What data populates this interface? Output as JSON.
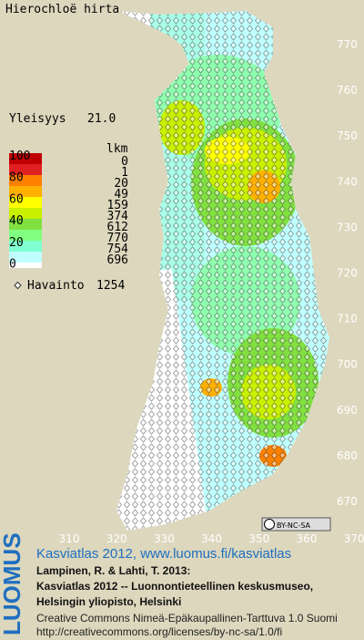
{
  "header": {
    "title": "Hierochloë hirta",
    "frequency_label": "Yleisyys",
    "frequency_value": "21.0"
  },
  "legend": {
    "scale_labels": [
      100,
      80,
      60,
      40,
      20,
      0
    ],
    "count_title": "lkm",
    "counts": [
      0,
      1,
      20,
      49,
      159,
      374,
      612,
      770,
      754,
      696
    ],
    "observation_label": "Havainto",
    "observation_count": 1254
  },
  "axes": {
    "right": [
      770,
      760,
      750,
      740,
      730,
      720,
      710,
      700,
      690,
      680,
      670
    ],
    "bottom": [
      310,
      320,
      330,
      340,
      350,
      360,
      370
    ]
  },
  "license_badge": "BY-NC-SA",
  "footer": {
    "logo": "LUOMUS",
    "link": "Kasviatlas 2012, www.luomus.fi/kasviatlas",
    "citation": [
      "Lampinen, R. & Lahti, T. 2013:",
      "Kasviatlas 2012 -- Luonnontieteellinen keskusmuseo,",
      "Helsingin yliopisto, Helsinki"
    ],
    "license": [
      "Creative Commons Nimeä-Epäkaupallinen-Tarttuva 1.0 Suomi",
      "http://creativecommons.org/licenses/by-nc-sa/1.0/fi"
    ]
  }
}
